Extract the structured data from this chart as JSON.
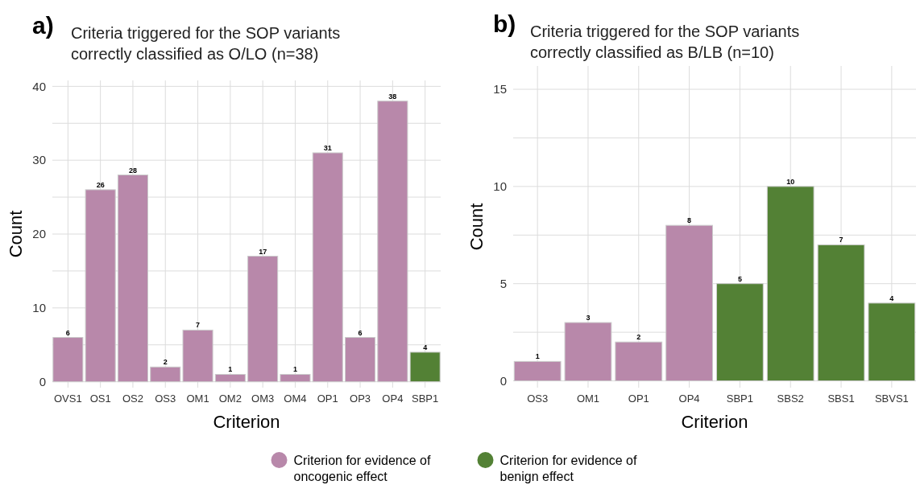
{
  "chart_data": [
    {
      "type": "bar",
      "title": "Criteria triggered for the SOP variants correctly classified as O/LO (n=38)",
      "xlabel": "Criterion",
      "ylabel": "Count",
      "annotations": [
        "a)"
      ],
      "stacked": true,
      "data_labels": true,
      "grid": true,
      "legend": "bottom",
      "categories": [
        "OVS1",
        "OS1",
        "OS2",
        "OS3",
        "OM1",
        "OM2",
        "OM3",
        "OM4",
        "OP1",
        "OP3",
        "OP4",
        "SBP1"
      ],
      "series": [
        {
          "name": "Criterion for evidence of oncogenic effect",
          "color": "#b888aa",
          "values": [
            6,
            26,
            28,
            2,
            7,
            1,
            17,
            1,
            31,
            6,
            38,
            null
          ]
        },
        {
          "name": "Criterion for evidence of benign effect",
          "color": "#538135",
          "values": [
            null,
            null,
            null,
            null,
            null,
            null,
            null,
            null,
            null,
            null,
            null,
            4
          ]
        }
      ],
      "ylim": [
        -0.8,
        40.8
      ],
      "yticks": [
        0,
        {
          "value": 5,
          "label": null
        },
        10,
        {
          "value": 15,
          "label": null
        },
        20,
        {
          "value": 25,
          "label": null
        },
        30,
        {
          "value": 35,
          "label": null
        },
        40
      ]
    },
    {
      "type": "bar",
      "title": "Criteria triggered for the SOP variants correctly classified as B/LB (n=10)",
      "xlabel": "Criterion",
      "ylabel": "Count",
      "annotations": [
        "b)"
      ],
      "stacked": true,
      "data_labels": true,
      "grid": true,
      "categories": [
        "OS3",
        "OM1",
        "OP1",
        "OP4",
        "SBP1",
        "SBS2",
        "SBS1",
        "SBVS1"
      ],
      "series": [
        {
          "color": "#b888aa",
          "values": [
            1,
            3,
            2,
            8,
            null,
            null,
            null,
            null
          ]
        },
        {
          "color": "#538135",
          "values": [
            null,
            null,
            null,
            null,
            5,
            10,
            7,
            4
          ]
        }
      ],
      "ylim": [
        -0.35,
        16.2
      ],
      "yticks": [
        0,
        {
          "value": 2.5,
          "label": null
        },
        5,
        {
          "value": 7.5,
          "label": null
        },
        10,
        {
          "value": 12.5,
          "label": null
        },
        15
      ]
    }
  ]
}
